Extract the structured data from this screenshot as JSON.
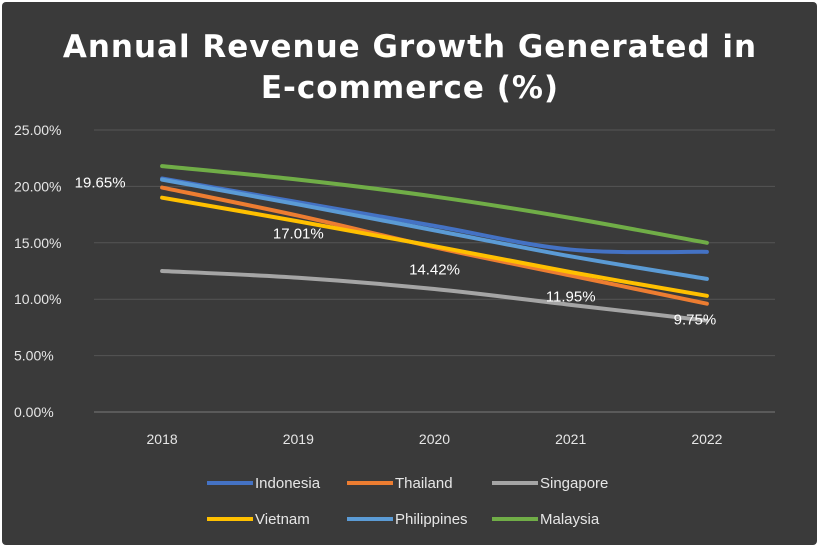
{
  "chart_data": {
    "type": "line",
    "title": [
      "Annual Revenue Growth Generated in",
      "E-commerce (%)"
    ],
    "xlabel": "",
    "ylabel": "",
    "categories": [
      "2018",
      "2019",
      "2020",
      "2021",
      "2022"
    ],
    "ylim": [
      0,
      25
    ],
    "yticks": [
      "0.00%",
      "5.00%",
      "10.00%",
      "15.00%",
      "20.00%",
      "25.00%"
    ],
    "grid": true,
    "legend_position": "bottom",
    "series": [
      {
        "name": "Indonesia",
        "color": "#4472C4",
        "values": [
          20.7,
          18.6,
          16.5,
          14.4,
          14.2
        ]
      },
      {
        "name": "Thailand",
        "color": "#ED7D31",
        "values": [
          19.9,
          17.4,
          14.6,
          12.1,
          9.6
        ]
      },
      {
        "name": "Singapore",
        "color": "#A5A5A5",
        "values": [
          12.5,
          11.9,
          10.9,
          9.5,
          8.1
        ]
      },
      {
        "name": "Vietnam",
        "color": "#FFC000",
        "values": [
          19.0,
          16.9,
          14.7,
          12.4,
          10.3
        ]
      },
      {
        "name": "Philippines",
        "color": "#5B9BD5",
        "values": [
          20.6,
          18.4,
          16.1,
          13.8,
          11.8
        ]
      },
      {
        "name": "Malaysia",
        "color": "#70AD47",
        "values": [
          21.8,
          20.6,
          19.1,
          17.2,
          15.0
        ]
      }
    ],
    "data_labels": [
      {
        "text": "19.65%",
        "category": "2018"
      },
      {
        "text": "17.01%",
        "category": "2019"
      },
      {
        "text": "14.42%",
        "category": "2020"
      },
      {
        "text": "11.95%",
        "category": "2021"
      },
      {
        "text": "9.75%",
        "category": "2022"
      }
    ]
  }
}
